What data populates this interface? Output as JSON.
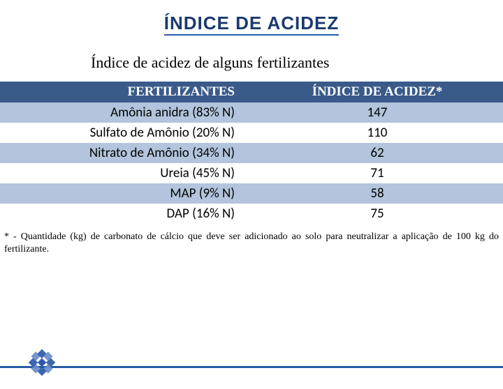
{
  "colors": {
    "title": "#1a3a6e",
    "title_underline": "#2a5aa8",
    "header_bg": "#3a5a8a",
    "header_text": "#ffffff",
    "row_stripe": "#b3c4dc",
    "row_plain": "#ffffff",
    "text": "#000000",
    "footer_line": "#2a5aa8",
    "logo_primary": "#2a5aa8",
    "logo_secondary": "#6a8ec8"
  },
  "typography": {
    "title_size": 26,
    "subtitle_size": 22,
    "header_size": 19,
    "cell_size": 19,
    "footnote_size": 14
  },
  "title": "ÍNDICE DE ACIDEZ",
  "subtitle": "Índice de acidez de alguns fertilizantes",
  "table": {
    "columns": [
      "FERTILIZANTES",
      "ÍNDICE DE ACIDEZ*"
    ],
    "rows": [
      {
        "label": "Amônia anidra (83% N)",
        "value": "147",
        "striped": true
      },
      {
        "label": "Sulfato de Amônio (20% N)",
        "value": "110",
        "striped": false
      },
      {
        "label": "Nitrato de Amônio (34% N)",
        "value": "62",
        "striped": true
      },
      {
        "label": "Ureia (45% N)",
        "value": "71",
        "striped": false
      },
      {
        "label": "MAP (9% N)",
        "value": "58",
        "striped": true
      },
      {
        "label": "DAP (16% N)",
        "value": "75",
        "striped": false
      }
    ]
  },
  "footnote": "* - Quantidade (kg) de carbonato de cálcio que deve ser adicionado ao solo para neutralizar a aplicação de 100 kg do fertilizante."
}
